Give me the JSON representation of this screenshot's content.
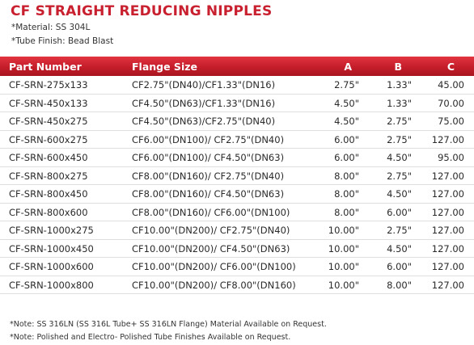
{
  "title": "CF STRAIGHT REDUCING NIPPLES",
  "notes_top": [
    "*Material: SS 304L",
    "*Tube Finish: Bead Blast"
  ],
  "columns": [
    "Part Number",
    "Flange Size",
    "A",
    "B",
    "C"
  ],
  "rows": [
    [
      "CF-SRN-275x133",
      "CF2.75\"(DN40)/CF1.33\"(DN16)",
      "2.75\"",
      "1.33\"",
      "45.00"
    ],
    [
      "CF-SRN-450x133",
      "CF4.50\"(DN63)/CF1.33\"(DN16)",
      "4.50\"",
      "1.33\"",
      "70.00"
    ],
    [
      "CF-SRN-450x275",
      "CF4.50\"(DN63)/CF2.75\"(DN40)",
      "4.50\"",
      "2.75\"",
      "75.00"
    ],
    [
      "CF-SRN-600x275",
      "CF6.00\"(DN100)/ CF2.75\"(DN40)",
      "6.00\"",
      "2.75\"",
      "127.00"
    ],
    [
      "CF-SRN-600x450",
      "CF6.00\"(DN100)/ CF4.50\"(DN63)",
      "6.00\"",
      "4.50\"",
      "95.00"
    ],
    [
      "CF-SRN-800x275",
      "CF8.00\"(DN160)/ CF2.75\"(DN40)",
      "8.00\"",
      "2.75\"",
      "127.00"
    ],
    [
      "CF-SRN-800x450",
      "CF8.00\"(DN160)/ CF4.50\"(DN63)",
      "8.00\"",
      "4.50\"",
      "127.00"
    ],
    [
      "CF-SRN-800x600",
      "CF8.00\"(DN160)/ CF6.00\"(DN100)",
      "8.00\"",
      "6.00\"",
      "127.00"
    ],
    [
      "CF-SRN-1000x275",
      "CF10.00\"(DN200)/ CF2.75\"(DN40)",
      "10.00\"",
      "2.75\"",
      "127.00"
    ],
    [
      "CF-SRN-1000x450",
      "CF10.00\"(DN200)/ CF4.50\"(DN63)",
      "10.00\"",
      "4.50\"",
      "127.00"
    ],
    [
      "CF-SRN-1000x600",
      "CF10.00\"(DN200)/ CF6.00\"(DN100)",
      "10.00\"",
      "6.00\"",
      "127.00"
    ],
    [
      "CF-SRN-1000x800",
      "CF10.00\"(DN200)/ CF8.00\"(DN160)",
      "10.00\"",
      "8.00\"",
      "127.00"
    ]
  ],
  "notes_bottom": [
    "*Note: SS 316LN (SS 316L Tube+ SS 316LN Flange) Material Available on Request.",
    "*Note: Polished and Electro- Polished Tube Finishes Available on Request."
  ],
  "colors": {
    "accent": "#c8202f",
    "header_bg": "#c41d2a",
    "row_divider": "#dedede"
  }
}
